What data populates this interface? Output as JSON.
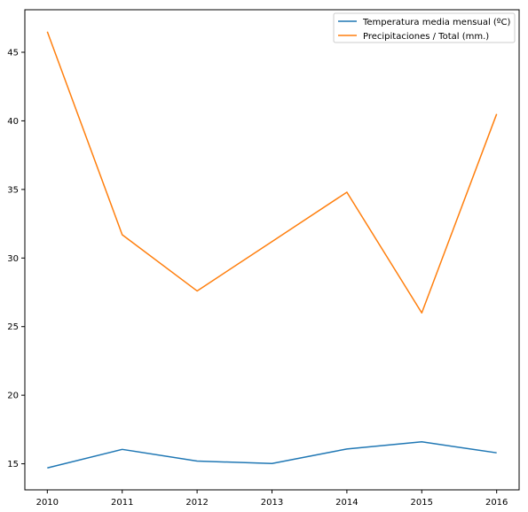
{
  "chart_data": {
    "type": "line",
    "x": [
      2010,
      2011,
      2012,
      2013,
      2014,
      2015,
      2016
    ],
    "series": [
      {
        "name": "Temperatura media mensual (ºC)",
        "color": "#1f77b4",
        "values": [
          14.7,
          16.05,
          15.2,
          15.02,
          16.08,
          16.6,
          15.8
        ]
      },
      {
        "name": "Precipitaciones / Total (mm.)",
        "color": "#ff7f0e",
        "values": [
          46.5,
          31.7,
          27.6,
          31.2,
          34.8,
          26.0,
          40.5
        ]
      }
    ],
    "x_ticks": [
      "2010",
      "2011",
      "2012",
      "2013",
      "2014",
      "2015",
      "2016"
    ],
    "y_ticks": [
      "15",
      "20",
      "25",
      "30",
      "35",
      "40",
      "45"
    ],
    "xlim": [
      2009.7,
      2016.3
    ],
    "ylim": [
      13.1,
      48.1
    ],
    "grid": false,
    "legend_position": "top-right"
  }
}
